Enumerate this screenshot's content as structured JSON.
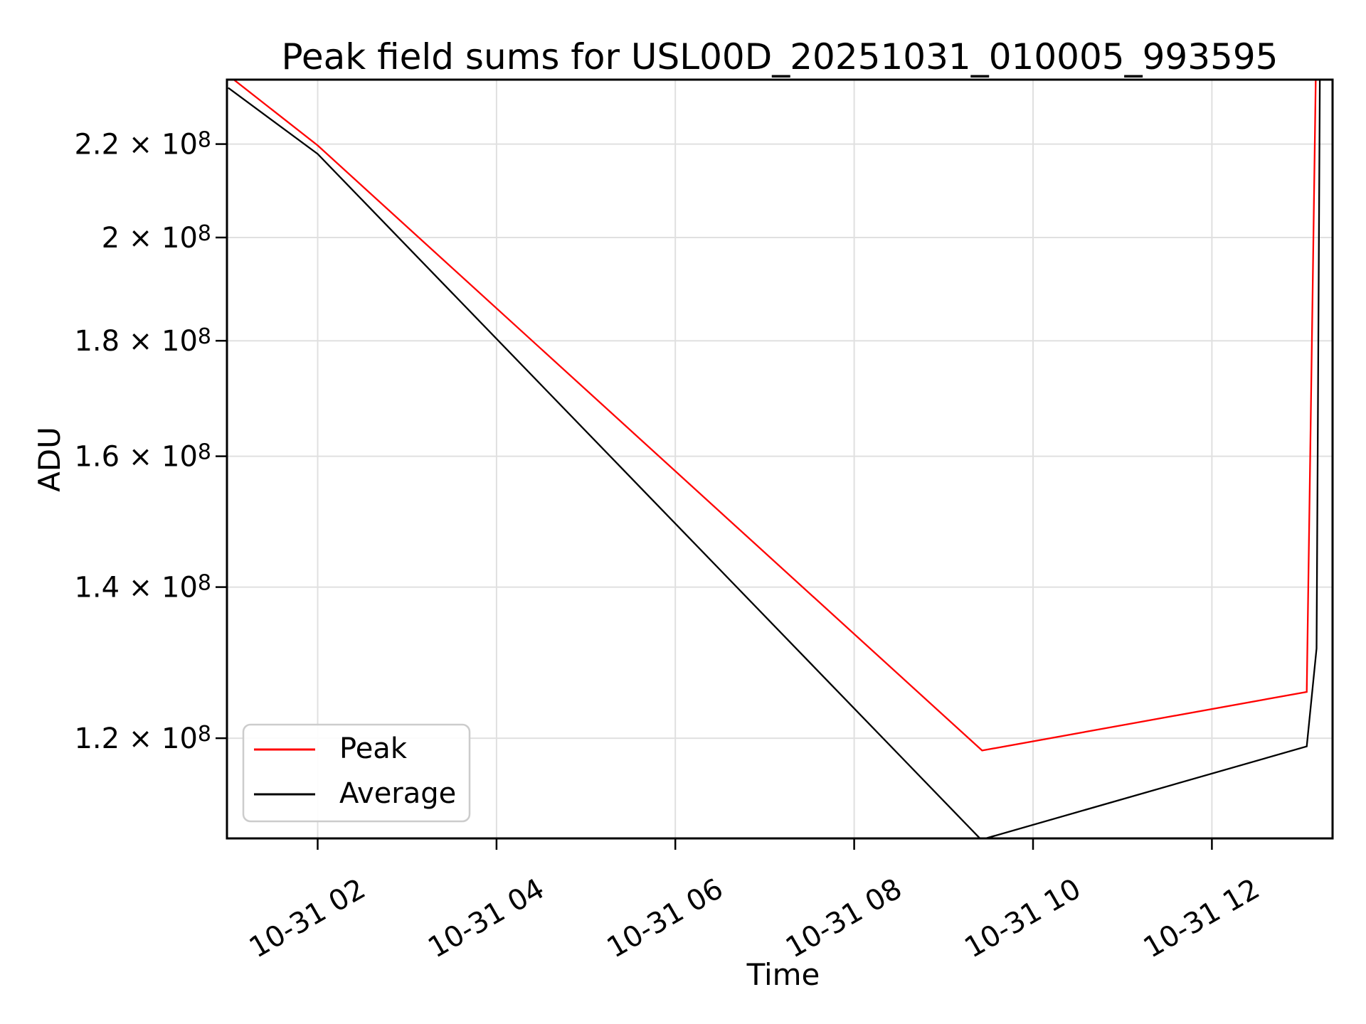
{
  "chart_data": {
    "type": "line",
    "title": "Peak field sums for USL00D_20251031_010005_993595",
    "xlabel": "Time",
    "ylabel": "ADU",
    "grid": true,
    "colors": {
      "grid": "#e0e0e0",
      "axis": "#000000",
      "background": "#ffffff",
      "peak_line": "#ff0000",
      "average_line": "#000000",
      "legend_border": "#cccccc"
    },
    "x_axis": {
      "unit": "time of day on 10-31 (hours)",
      "range_hours": [
        0.986,
        13.349
      ],
      "tick_hours": [
        2,
        4,
        6,
        8,
        10,
        12
      ],
      "tick_labels": [
        "10-31 02",
        "10-31 04",
        "10-31 06",
        "10-31 08",
        "10-31 10",
        "10-31 12"
      ],
      "tick_rotation_deg": 30
    },
    "y_axis": {
      "scale": "log",
      "range": [
        108340000,
        234950000
      ],
      "ticks": [
        {
          "base": "2.2 × 10",
          "exp": "8",
          "value": 220000000
        },
        {
          "base": "2 × 10",
          "exp": "8",
          "value": 200000000
        },
        {
          "base": "1.8 × 10",
          "exp": "8",
          "value": 180000000
        },
        {
          "base": "1.6 × 10",
          "exp": "8",
          "value": 160000000
        },
        {
          "base": "1.4 × 10",
          "exp": "8",
          "value": 140000000
        },
        {
          "base": "1.2 × 10",
          "exp": "8",
          "value": 120000000
        }
      ]
    },
    "series": [
      {
        "name": "Peak",
        "color": "#ff0000",
        "points_hours_vs_adu": [
          [
            1.0,
            236000000
          ],
          [
            2.0,
            219700000
          ],
          [
            9.43,
            118500000
          ],
          [
            13.06,
            125800000
          ],
          [
            13.2,
            300000000
          ]
        ]
      },
      {
        "name": "Average",
        "color": "#000000",
        "points_hours_vs_adu": [
          [
            1.0,
            233000000
          ],
          [
            2.0,
            217800000
          ],
          [
            9.42,
            108200000
          ],
          [
            13.06,
            119000000
          ],
          [
            13.17,
            131500000
          ],
          [
            13.22,
            290000000
          ]
        ]
      }
    ],
    "legend": {
      "position": "lower left",
      "entries": [
        {
          "label": "Peak",
          "color": "#ff0000"
        },
        {
          "label": "Average",
          "color": "#000000"
        }
      ]
    }
  }
}
